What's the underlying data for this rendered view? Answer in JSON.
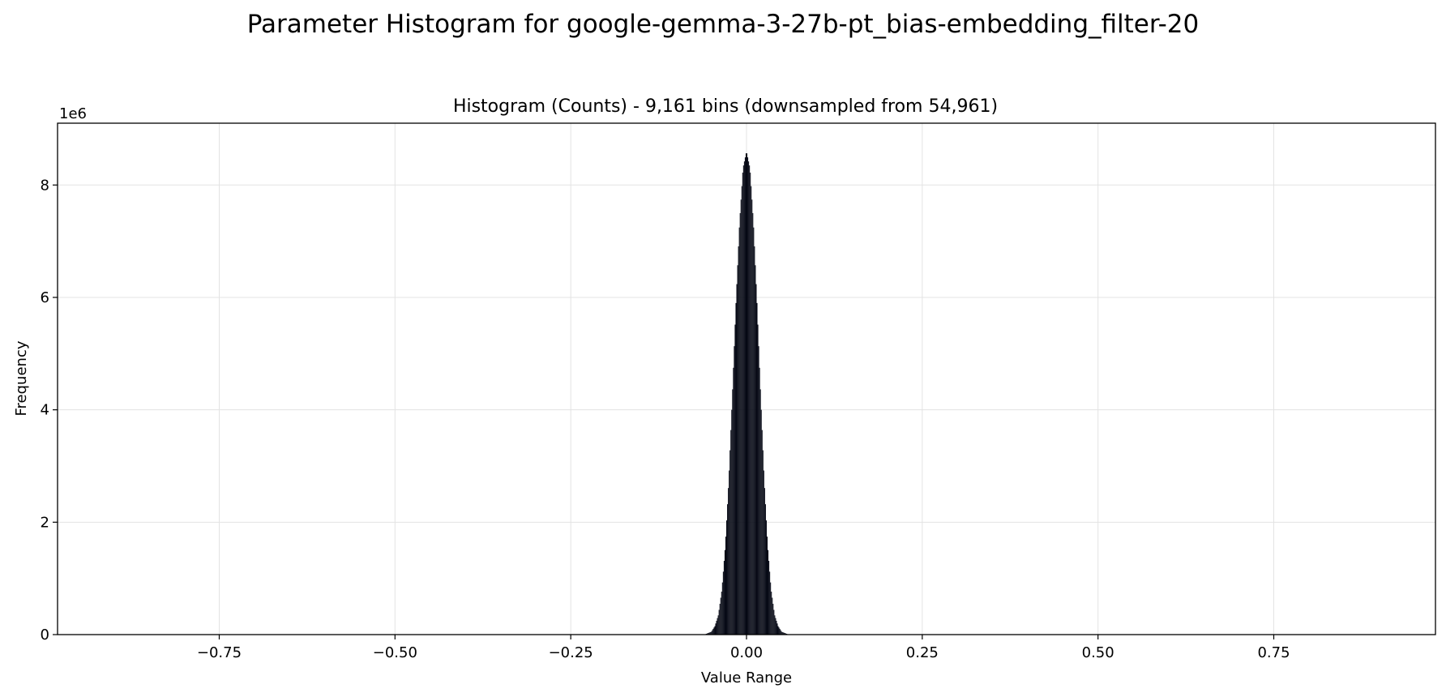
{
  "chart_data": {
    "type": "bar",
    "title": "Parameter Histogram for google-gemma-3-27b-pt_bias-embedding_filter-20",
    "subtitle": "Histogram (Counts) - 9,161 bins (downsampled from 54,961)",
    "xlabel": "Value Range",
    "ylabel": "Frequency",
    "y_offset_text": "1e6",
    "xlim": [
      -0.98,
      0.98
    ],
    "ylim": [
      0,
      9100000
    ],
    "xticks": [
      -0.75,
      -0.5,
      -0.25,
      0.0,
      0.25,
      0.5,
      0.75
    ],
    "xtick_labels": [
      "−0.75",
      "−0.50",
      "−0.25",
      "0.00",
      "0.25",
      "0.50",
      "0.75"
    ],
    "yticks": [
      0,
      2000000,
      4000000,
      6000000,
      8000000
    ],
    "ytick_labels": [
      "0",
      "2",
      "4",
      "6",
      "8"
    ],
    "grid": true,
    "bar_color": "#050814",
    "distribution": {
      "x": [
        -0.06,
        -0.05,
        -0.045,
        -0.04,
        -0.035,
        -0.03,
        -0.025,
        -0.02,
        -0.015,
        -0.01,
        -0.005,
        0.0,
        0.005,
        0.01,
        0.015,
        0.02,
        0.025,
        0.03,
        0.035,
        0.04,
        0.045,
        0.05,
        0.06
      ],
      "y": [
        0,
        50000,
        150000,
        350000,
        800000,
        1600000,
        2800000,
        4300000,
        5900000,
        7300000,
        8300000,
        8600000,
        8300000,
        7300000,
        5900000,
        4300000,
        2800000,
        1600000,
        800000,
        350000,
        150000,
        50000,
        0
      ]
    }
  }
}
